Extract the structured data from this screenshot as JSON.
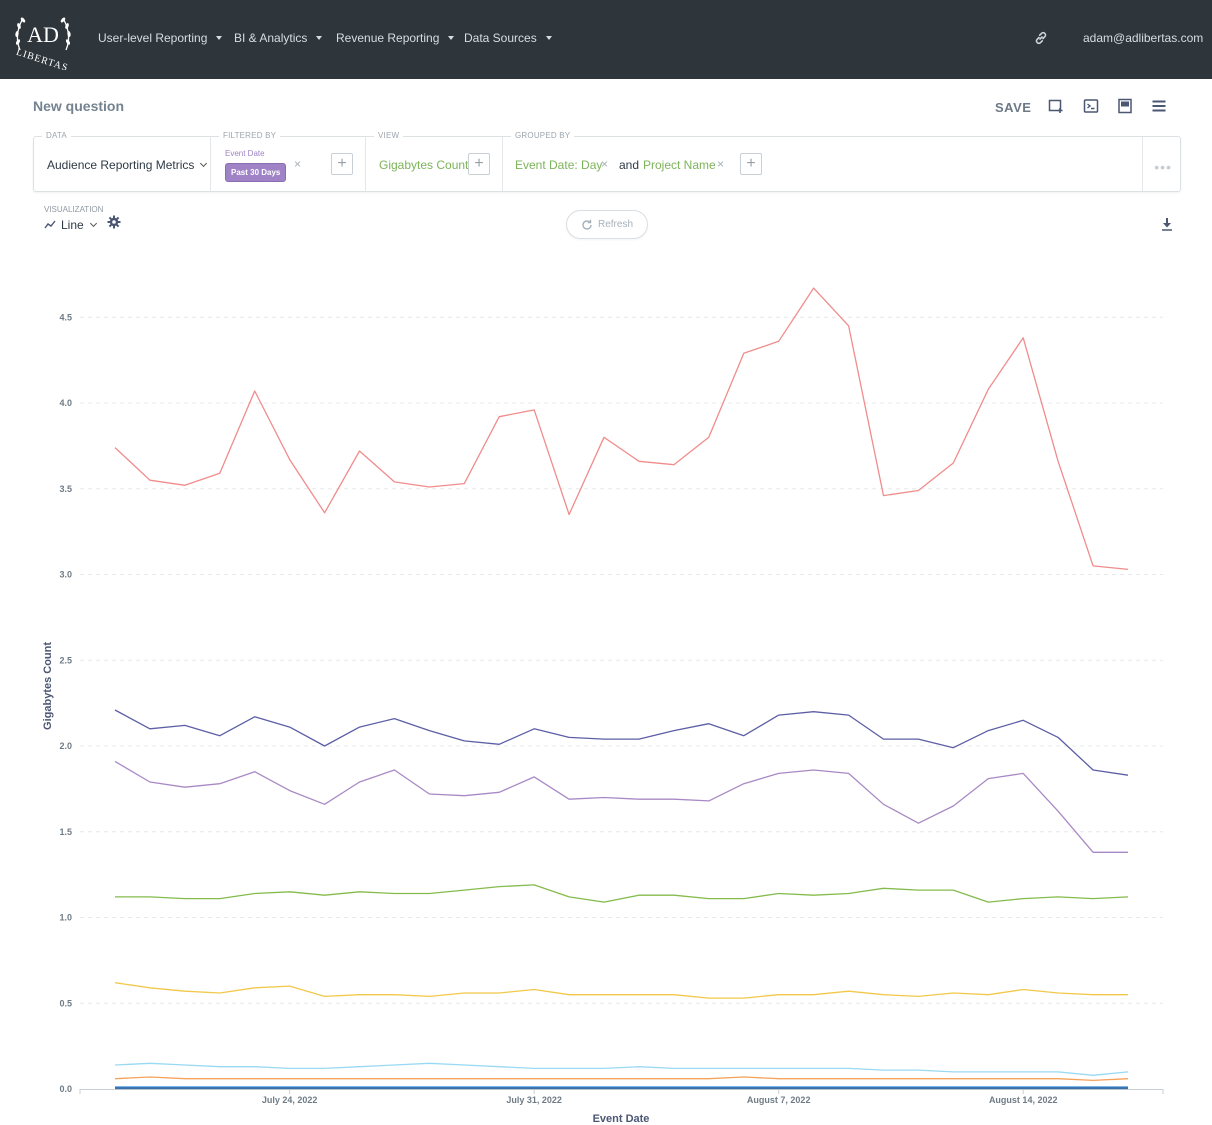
{
  "nav": {
    "logo_text": "AD LIBERTAS",
    "items": [
      {
        "label": "User-level Reporting"
      },
      {
        "label": "BI & Analytics"
      },
      {
        "label": "Revenue Reporting"
      },
      {
        "label": "Data Sources"
      }
    ],
    "user_email": "adam@adlibertas.com",
    "icons": [
      "link-icon",
      "caret-down-icon"
    ]
  },
  "question": {
    "title": "New question",
    "save_label": "SAVE",
    "toolbar_icons": [
      "add-to-dashboard-icon",
      "sql-icon",
      "notebook-icon",
      "menu-icon"
    ]
  },
  "builder": {
    "data_label": "DATA",
    "data_source": "Audience Reporting Metrics",
    "filter_label": "FILTERED BY",
    "filter_field": "Event Date",
    "filter_value": "Past 30 Days",
    "view_label": "VIEW",
    "view_metric": "Gigabytes Count",
    "group_label": "GROUPED BY",
    "group_1": "Event Date: Day",
    "group_join": "and",
    "group_2": "Project Name",
    "plus": "+",
    "remove": "×",
    "more": "•••"
  },
  "visualization": {
    "label": "VISUALIZATION",
    "type": "Line",
    "refresh_label": "Refresh"
  },
  "chart_data": {
    "type": "line",
    "xlabel": "Event Date",
    "ylabel": "Gigabytes Count",
    "ylim": [
      0,
      4.7
    ],
    "yticks": [
      "0.0",
      "0.5",
      "1.0",
      "1.5",
      "2.0",
      "2.5",
      "3.0",
      "3.5",
      "4.0",
      "4.5"
    ],
    "x_tick_labels": [
      {
        "label": "July 24, 2022",
        "index": 5
      },
      {
        "label": "July 31, 2022",
        "index": 12
      },
      {
        "label": "August 7, 2022",
        "index": 19
      },
      {
        "label": "August 14, 2022",
        "index": 26
      }
    ],
    "grid": "horizontal dashed",
    "x": [
      "2022-07-19",
      "2022-07-20",
      "2022-07-21",
      "2022-07-22",
      "2022-07-23",
      "2022-07-24",
      "2022-07-25",
      "2022-07-26",
      "2022-07-27",
      "2022-07-28",
      "2022-07-29",
      "2022-07-30",
      "2022-07-31",
      "2022-08-01",
      "2022-08-02",
      "2022-08-03",
      "2022-08-04",
      "2022-08-05",
      "2022-08-06",
      "2022-08-07",
      "2022-08-08",
      "2022-08-09",
      "2022-08-10",
      "2022-08-11",
      "2022-08-12",
      "2022-08-13",
      "2022-08-14",
      "2022-08-15",
      "2022-08-16",
      "2022-08-17"
    ],
    "series": [
      {
        "color": "#f08c8c",
        "values": [
          3.74,
          3.55,
          3.52,
          3.59,
          4.07,
          3.67,
          3.36,
          3.72,
          3.54,
          3.51,
          3.53,
          3.92,
          3.96,
          3.35,
          3.8,
          3.66,
          3.64,
          3.8,
          4.29,
          4.36,
          4.67,
          4.45,
          3.46,
          3.49,
          3.65,
          4.08,
          4.38,
          3.66,
          3.05,
          3.03
        ]
      },
      {
        "color": "#5c5ea6",
        "values": [
          2.21,
          2.1,
          2.12,
          2.06,
          2.17,
          2.11,
          2.0,
          2.11,
          2.16,
          2.09,
          2.03,
          2.01,
          2.1,
          2.05,
          2.04,
          2.04,
          2.09,
          2.13,
          2.06,
          2.18,
          2.2,
          2.18,
          2.04,
          2.04,
          1.99,
          2.09,
          2.15,
          2.05,
          1.86,
          1.83
        ]
      },
      {
        "color": "#a989c5",
        "values": [
          1.91,
          1.79,
          1.76,
          1.78,
          1.85,
          1.74,
          1.66,
          1.79,
          1.86,
          1.72,
          1.71,
          1.73,
          1.82,
          1.69,
          1.7,
          1.69,
          1.69,
          1.68,
          1.78,
          1.84,
          1.86,
          1.84,
          1.66,
          1.55,
          1.65,
          1.81,
          1.84,
          1.62,
          1.38,
          1.38
        ]
      },
      {
        "color": "#84bb4c",
        "values": [
          1.12,
          1.12,
          1.11,
          1.11,
          1.14,
          1.15,
          1.13,
          1.15,
          1.14,
          1.14,
          1.16,
          1.18,
          1.19,
          1.12,
          1.09,
          1.13,
          1.13,
          1.11,
          1.11,
          1.14,
          1.13,
          1.14,
          1.17,
          1.16,
          1.16,
          1.09,
          1.11,
          1.12,
          1.11,
          1.12
        ]
      },
      {
        "color": "#f2c84b",
        "values": [
          0.62,
          0.59,
          0.57,
          0.56,
          0.59,
          0.6,
          0.54,
          0.55,
          0.55,
          0.54,
          0.56,
          0.56,
          0.58,
          0.55,
          0.55,
          0.55,
          0.55,
          0.53,
          0.53,
          0.55,
          0.55,
          0.57,
          0.55,
          0.54,
          0.56,
          0.55,
          0.58,
          0.56,
          0.55,
          0.55
        ]
      },
      {
        "color": "#98d9f3",
        "values": [
          0.14,
          0.15,
          0.14,
          0.13,
          0.13,
          0.12,
          0.12,
          0.13,
          0.14,
          0.15,
          0.14,
          0.13,
          0.12,
          0.12,
          0.12,
          0.13,
          0.12,
          0.12,
          0.12,
          0.12,
          0.12,
          0.12,
          0.11,
          0.11,
          0.1,
          0.1,
          0.1,
          0.1,
          0.08,
          0.1
        ]
      },
      {
        "color": "#f5a25a",
        "values": [
          0.06,
          0.07,
          0.06,
          0.06,
          0.06,
          0.06,
          0.06,
          0.06,
          0.06,
          0.06,
          0.06,
          0.06,
          0.06,
          0.06,
          0.06,
          0.06,
          0.06,
          0.06,
          0.07,
          0.06,
          0.06,
          0.06,
          0.06,
          0.06,
          0.06,
          0.06,
          0.06,
          0.06,
          0.05,
          0.06
        ]
      },
      {
        "color": "#509ee3",
        "values": [
          0.01,
          0.01,
          0.01,
          0.01,
          0.01,
          0.01,
          0.01,
          0.01,
          0.01,
          0.01,
          0.01,
          0.01,
          0.01,
          0.01,
          0.01,
          0.01,
          0.01,
          0.01,
          0.01,
          0.01,
          0.01,
          0.01,
          0.01,
          0.01,
          0.01,
          0.01,
          0.01,
          0.01,
          0.01,
          0.01
        ]
      },
      {
        "color": "#3a6fa8",
        "values": [
          0.005,
          0.005,
          0.005,
          0.005,
          0.005,
          0.005,
          0.005,
          0.005,
          0.005,
          0.005,
          0.005,
          0.005,
          0.005,
          0.005,
          0.005,
          0.005,
          0.005,
          0.005,
          0.005,
          0.005,
          0.005,
          0.005,
          0.005,
          0.005,
          0.005,
          0.005,
          0.005,
          0.005,
          0.005,
          0.005
        ]
      }
    ]
  }
}
